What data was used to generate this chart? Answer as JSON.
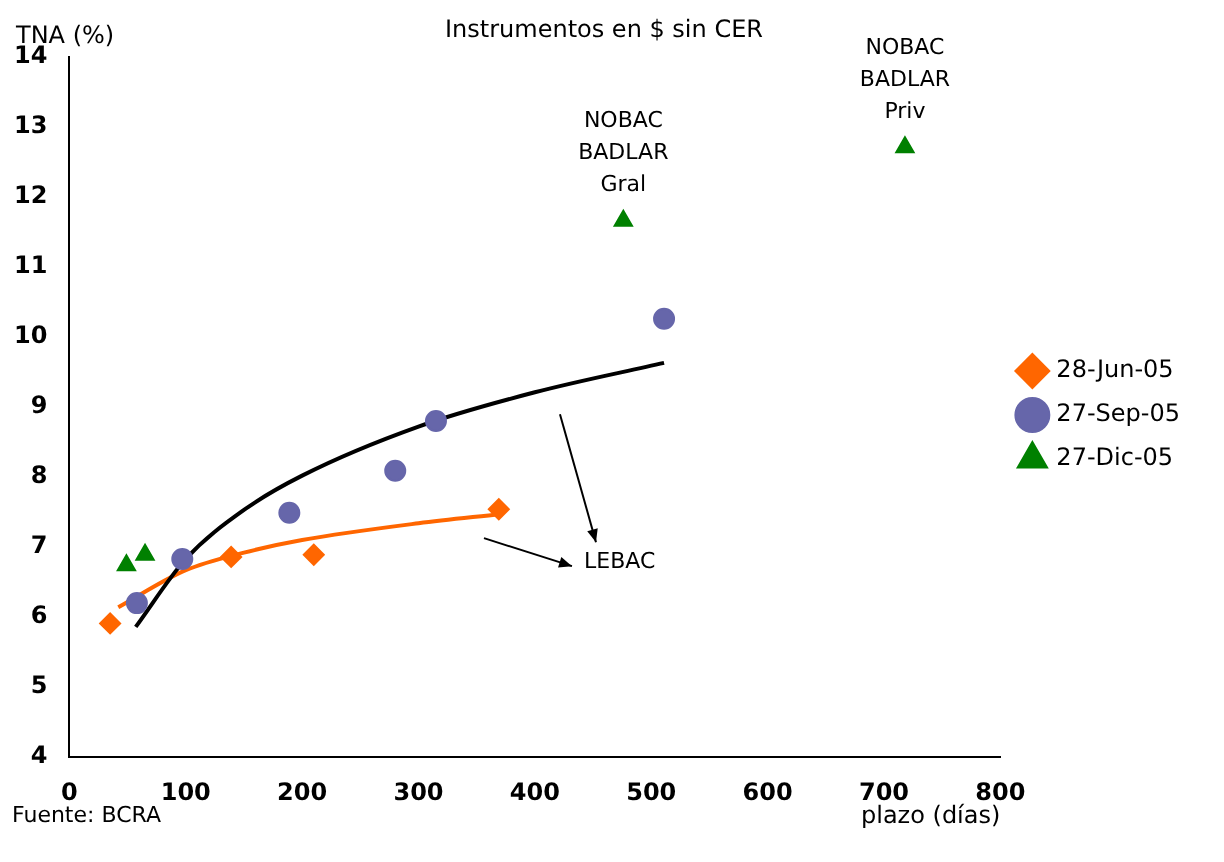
{
  "chart_data": {
    "type": "scatter",
    "title": "Instrumentos en $ sin CER",
    "xlabel": "plazo (días)",
    "ylabel": "TNA (%)",
    "xlim": [
      0,
      800
    ],
    "xticks": [
      0,
      100,
      200,
      300,
      400,
      500,
      600,
      700,
      800
    ],
    "ylim": [
      4,
      14
    ],
    "yticks": [
      4,
      5,
      6,
      7,
      8,
      9,
      10,
      11,
      12,
      13,
      14
    ],
    "grid": false,
    "legend": "right",
    "series": [
      {
        "name": "28-Jun-05",
        "color": "#ff6600",
        "marker": "diamond",
        "x": [
          35,
          139,
          210,
          369
        ],
        "values": [
          5.91,
          6.86,
          6.89,
          7.54
        ]
      },
      {
        "name": "27-Sep-05",
        "color": "#6666aa",
        "marker": "circle",
        "x": [
          58,
          97,
          189,
          280,
          315,
          511
        ],
        "values": [
          6.2,
          6.83,
          7.49,
          8.09,
          8.8,
          10.26
        ]
      },
      {
        "name": "27-Dic-05",
        "color": "#008000",
        "marker": "triangle",
        "x": [
          49,
          65,
          476,
          718
        ],
        "values": [
          6.74,
          6.89,
          11.66,
          12.71
        ]
      },
      {
        "type": "line",
        "color": "#000000",
        "marker": "none",
        "x": [
          57,
          100,
          150,
          200,
          300,
          400,
          511
        ],
        "values": [
          5.86,
          6.83,
          7.53,
          8.02,
          8.72,
          9.21,
          9.63
        ]
      },
      {
        "type": "line",
        "color": "#ff6600",
        "marker": "none",
        "x": [
          42,
          100,
          150,
          200,
          300,
          370
        ],
        "values": [
          6.14,
          6.67,
          6.92,
          7.1,
          7.34,
          7.47
        ]
      }
    ],
    "annotations": [
      {
        "text": "NOBAC\nBADLAR\nGral",
        "x": 476,
        "y": 11.66
      },
      {
        "text": "NOBAC\nBADLAR\nPriv",
        "x": 718,
        "y": 12.71
      },
      "LEBAC",
      "Fuente: BCRA"
    ]
  }
}
